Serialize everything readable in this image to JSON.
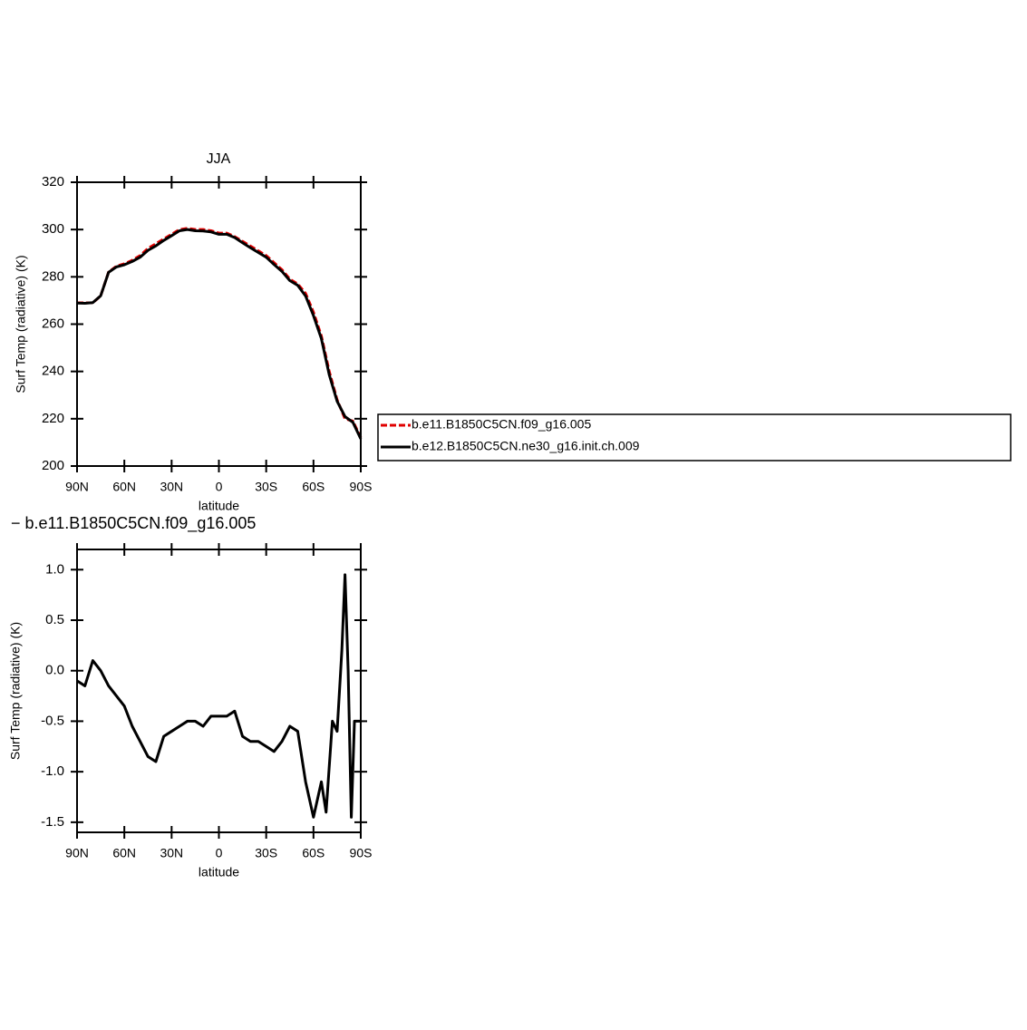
{
  "chart_data": [
    {
      "type": "line",
      "title": "JJA",
      "x_label": "latitude",
      "y_label": "Surf Temp (radiative) (K)",
      "x": [
        90,
        85,
        80,
        75,
        70,
        65,
        60,
        55,
        50,
        45,
        40,
        35,
        30,
        25,
        20,
        15,
        10,
        5,
        0,
        -5,
        -10,
        -15,
        -20,
        -25,
        -30,
        -35,
        -40,
        -45,
        -50,
        -55,
        -60,
        -65,
        -70,
        -75,
        -80,
        -85,
        -90
      ],
      "series": [
        {
          "name": "b.e11.B1850C5CN.f09_g16.005",
          "color": "#e00000",
          "dashed": true,
          "values": [
            269,
            269,
            269,
            272,
            282,
            284.5,
            285.5,
            287,
            289,
            292,
            294,
            296,
            298,
            300,
            300.5,
            300,
            300,
            299.5,
            298.5,
            298.5,
            297,
            295,
            293,
            291,
            289,
            286,
            283,
            279,
            277,
            273,
            265,
            255,
            240,
            228,
            220,
            219,
            212
          ]
        },
        {
          "name": "b.e12.B1850C5CN.ne30_g16.init.ch.009",
          "color": "#000000",
          "dashed": false,
          "values": [
            268.9,
            268.8,
            269.1,
            272,
            281.9,
            284.2,
            285.1,
            286.5,
            288.3,
            291.2,
            293.1,
            295.4,
            297.4,
            299.5,
            300,
            299.5,
            299.4,
            299,
            298,
            298,
            296.6,
            294.4,
            292.3,
            290.3,
            288.3,
            285.2,
            282.3,
            278.4,
            276.4,
            271.9,
            263.6,
            253.9,
            238.6,
            227.4,
            220.9,
            218.5,
            211.5
          ]
        }
      ],
      "xlim": [
        90,
        -90
      ],
      "xticks": [
        {
          "value": 90,
          "label": "90N"
        },
        {
          "value": 60,
          "label": "60N"
        },
        {
          "value": 30,
          "label": "30N"
        },
        0,
        {
          "value": -30,
          "label": "30S"
        },
        {
          "value": -60,
          "label": "60S"
        },
        {
          "value": -90,
          "label": "90S"
        }
      ],
      "ylim": [
        200,
        320
      ],
      "yticks": [
        200,
        220,
        240,
        260,
        280,
        300,
        320
      ],
      "legend": "right"
    },
    {
      "type": "line",
      "title": "− b.e11.B1850C5CN.f09_g16.005",
      "x_label": "latitude",
      "y_label": "Surf Temp (radiative) (K)",
      "x": [
        90,
        85,
        80,
        75,
        70,
        65,
        60,
        55,
        50,
        45,
        40,
        35,
        30,
        25,
        20,
        15,
        10,
        5,
        0,
        -5,
        -10,
        -15,
        -20,
        -25,
        -30,
        -35,
        -40,
        -45,
        -50,
        -55,
        -60,
        -65,
        -68,
        -72,
        -75,
        -78,
        -80,
        -82,
        -84,
        -86,
        -90
      ],
      "series": [
        {
          "color": "#000000",
          "dashed": false,
          "values": [
            -0.1,
            -0.15,
            0.1,
            0.0,
            -0.15,
            -0.25,
            -0.35,
            -0.55,
            -0.7,
            -0.85,
            -0.9,
            -0.65,
            -0.6,
            -0.55,
            -0.5,
            -0.5,
            -0.55,
            -0.45,
            -0.45,
            -0.45,
            -0.4,
            -0.65,
            -0.7,
            -0.7,
            -0.75,
            -0.8,
            -0.7,
            -0.55,
            -0.6,
            -1.1,
            -1.45,
            -1.1,
            -1.4,
            -0.5,
            -0.6,
            0.2,
            0.95,
            0.0,
            -1.45,
            -0.5,
            -0.5
          ]
        }
      ],
      "xlim": [
        90,
        -90
      ],
      "xticks": [
        {
          "value": 90,
          "label": "90N"
        },
        {
          "value": 60,
          "label": "60N"
        },
        {
          "value": 30,
          "label": "30N"
        },
        0,
        {
          "value": -30,
          "label": "30S"
        },
        {
          "value": -60,
          "label": "60S"
        },
        {
          "value": -90,
          "label": "90S"
        }
      ],
      "ylim": [
        -1.6,
        1.2
      ],
      "yticks": [
        -1.5,
        {
          "value": -1.0,
          "label": "-1.0"
        },
        -0.5,
        {
          "value": 0.0,
          "label": "0.0"
        },
        0.5,
        {
          "value": 1.0,
          "label": "1.0"
        }
      ]
    }
  ]
}
